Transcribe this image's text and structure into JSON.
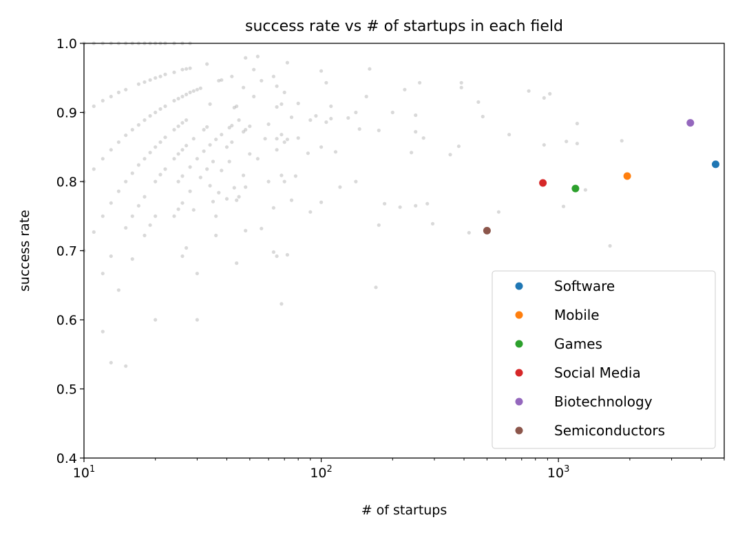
{
  "chart_data": {
    "type": "scatter",
    "title": "success rate vs # of startups in each field",
    "xlabel": "# of startups",
    "ylabel": "success rate",
    "xscale": "log",
    "xlim": [
      10,
      5000
    ],
    "ylim": [
      0.4,
      1.0
    ],
    "xticks": [
      {
        "value": 10,
        "base": "10",
        "exp": "1"
      },
      {
        "value": 100,
        "base": "10",
        "exp": "2"
      },
      {
        "value": 1000,
        "base": "10",
        "exp": "3"
      }
    ],
    "yticks": [
      {
        "value": 0.4,
        "label": "0.4"
      },
      {
        "value": 0.5,
        "label": "0.5"
      },
      {
        "value": 0.6,
        "label": "0.6"
      },
      {
        "value": 0.7,
        "label": "0.7"
      },
      {
        "value": 0.8,
        "label": "0.8"
      },
      {
        "value": 0.9,
        "label": "0.9"
      },
      {
        "value": 1.0,
        "label": "1.0"
      }
    ],
    "legend_position": "lower-right",
    "grid": false,
    "background_series": {
      "color": "#808080",
      "points": [
        [
          10,
          1.0
        ],
        [
          10,
          0.9
        ],
        [
          10,
          0.8
        ],
        [
          10,
          0.7
        ],
        [
          11,
          1.0
        ],
        [
          11,
          0.909
        ],
        [
          11,
          0.818
        ],
        [
          11,
          0.727
        ],
        [
          12,
          1.0
        ],
        [
          12,
          0.917
        ],
        [
          12,
          0.833
        ],
        [
          12,
          0.75
        ],
        [
          12,
          0.667
        ],
        [
          12,
          0.583
        ],
        [
          13,
          1.0
        ],
        [
          13,
          0.923
        ],
        [
          13,
          0.846
        ],
        [
          13,
          0.769
        ],
        [
          13,
          0.692
        ],
        [
          13,
          0.538
        ],
        [
          14,
          1.0
        ],
        [
          14,
          0.929
        ],
        [
          14,
          0.857
        ],
        [
          14,
          0.786
        ],
        [
          14,
          0.643
        ],
        [
          15,
          1.0
        ],
        [
          15,
          0.933
        ],
        [
          15,
          0.867
        ],
        [
          15,
          0.8
        ],
        [
          15,
          0.733
        ],
        [
          15,
          0.533
        ],
        [
          16,
          1.0
        ],
        [
          16,
          0.875
        ],
        [
          16,
          0.812
        ],
        [
          16,
          0.75
        ],
        [
          16,
          0.688
        ],
        [
          17,
          1.0
        ],
        [
          17,
          0.941
        ],
        [
          17,
          0.882
        ],
        [
          17,
          0.824
        ],
        [
          17,
          0.765
        ],
        [
          18,
          1.0
        ],
        [
          18,
          0.944
        ],
        [
          18,
          0.889
        ],
        [
          18,
          0.833
        ],
        [
          18,
          0.778
        ],
        [
          18,
          0.722
        ],
        [
          19,
          1.0
        ],
        [
          19,
          0.947
        ],
        [
          19,
          0.895
        ],
        [
          19,
          0.842
        ],
        [
          19,
          0.737
        ],
        [
          20,
          1.0
        ],
        [
          20,
          0.95
        ],
        [
          20,
          0.9
        ],
        [
          20,
          0.85
        ],
        [
          20,
          0.8
        ],
        [
          20,
          0.75
        ],
        [
          20,
          0.6
        ],
        [
          21,
          1.0
        ],
        [
          21,
          0.952
        ],
        [
          21,
          0.905
        ],
        [
          21,
          0.857
        ],
        [
          21,
          0.81
        ],
        [
          22,
          1.0
        ],
        [
          22,
          0.955
        ],
        [
          22,
          0.909
        ],
        [
          22,
          0.864
        ],
        [
          22,
          0.818
        ],
        [
          24,
          1.0
        ],
        [
          24,
          0.958
        ],
        [
          24,
          0.917
        ],
        [
          24,
          0.875
        ],
        [
          24,
          0.833
        ],
        [
          24,
          0.75
        ],
        [
          25,
          0.92
        ],
        [
          25,
          0.88
        ],
        [
          25,
          0.84
        ],
        [
          25,
          0.8
        ],
        [
          25,
          0.76
        ],
        [
          26,
          1.0
        ],
        [
          26,
          0.962
        ],
        [
          26,
          0.923
        ],
        [
          26,
          0.885
        ],
        [
          26,
          0.846
        ],
        [
          26,
          0.808
        ],
        [
          26,
          0.769
        ],
        [
          26,
          0.692
        ],
        [
          27,
          0.963
        ],
        [
          27,
          0.926
        ],
        [
          27,
          0.889
        ],
        [
          27,
          0.852
        ],
        [
          27,
          0.704
        ],
        [
          28,
          1.0
        ],
        [
          28,
          0.964
        ],
        [
          28,
          0.929
        ],
        [
          28,
          0.821
        ],
        [
          28,
          0.786
        ],
        [
          29,
          0.931
        ],
        [
          29,
          0.862
        ],
        [
          29,
          0.759
        ],
        [
          30,
          0.933
        ],
        [
          30,
          0.833
        ],
        [
          30,
          0.667
        ],
        [
          30,
          0.6
        ],
        [
          31,
          0.935
        ],
        [
          31,
          0.806
        ],
        [
          32,
          0.875
        ],
        [
          32,
          0.844
        ],
        [
          33,
          0.97
        ],
        [
          33,
          0.879
        ],
        [
          33,
          0.818
        ],
        [
          34,
          0.912
        ],
        [
          34,
          0.853
        ],
        [
          34,
          0.794
        ],
        [
          35,
          0.771
        ],
        [
          35,
          0.829
        ],
        [
          36,
          0.861
        ],
        [
          36,
          0.75
        ],
        [
          36,
          0.722
        ],
        [
          37,
          0.946
        ],
        [
          37,
          0.784
        ],
        [
          38,
          0.947
        ],
        [
          38,
          0.868
        ],
        [
          38,
          0.816
        ],
        [
          40,
          0.85
        ],
        [
          40,
          0.775
        ],
        [
          41,
          0.878
        ],
        [
          41,
          0.829
        ],
        [
          42,
          0.952
        ],
        [
          42,
          0.881
        ],
        [
          42,
          0.857
        ],
        [
          43,
          0.907
        ],
        [
          43,
          0.791
        ],
        [
          44,
          0.909
        ],
        [
          44,
          0.773
        ],
        [
          44,
          0.682
        ],
        [
          45,
          0.889
        ],
        [
          45,
          0.778
        ],
        [
          47,
          0.936
        ],
        [
          47,
          0.872
        ],
        [
          47,
          0.809
        ],
        [
          48,
          0.979
        ],
        [
          48,
          0.875
        ],
        [
          48,
          0.792
        ],
        [
          48,
          0.729
        ],
        [
          50,
          0.88
        ],
        [
          50,
          0.84
        ],
        [
          52,
          0.962
        ],
        [
          52,
          0.923
        ],
        [
          54,
          0.981
        ],
        [
          54,
          0.833
        ],
        [
          56,
          0.946
        ],
        [
          56,
          0.732
        ],
        [
          58,
          0.862
        ],
        [
          60,
          0.883
        ],
        [
          60,
          0.8
        ],
        [
          63,
          0.952
        ],
        [
          63,
          0.762
        ],
        [
          63,
          0.698
        ],
        [
          65,
          0.938
        ],
        [
          65,
          0.862
        ],
        [
          65,
          0.908
        ],
        [
          65,
          0.846
        ],
        [
          65,
          0.692
        ],
        [
          68,
          0.912
        ],
        [
          68,
          0.868
        ],
        [
          68,
          0.809
        ],
        [
          68,
          0.623
        ],
        [
          70,
          0.929
        ],
        [
          70,
          0.857
        ],
        [
          70,
          0.8
        ],
        [
          72,
          0.972
        ],
        [
          72,
          0.861
        ],
        [
          72,
          0.694
        ],
        [
          75,
          0.893
        ],
        [
          75,
          0.773
        ],
        [
          78,
          0.808
        ],
        [
          80,
          0.913
        ],
        [
          80,
          0.863
        ],
        [
          88,
          0.841
        ],
        [
          90,
          0.889
        ],
        [
          90,
          0.756
        ],
        [
          95,
          0.895
        ],
        [
          100,
          0.96
        ],
        [
          100,
          0.85
        ],
        [
          100,
          0.77
        ],
        [
          105,
          0.943
        ],
        [
          105,
          0.886
        ],
        [
          110,
          0.909
        ],
        [
          110,
          0.891
        ],
        [
          115,
          0.843
        ],
        [
          120,
          0.792
        ],
        [
          130,
          0.892
        ],
        [
          140,
          0.9
        ],
        [
          140,
          0.8
        ],
        [
          145,
          0.876
        ],
        [
          155,
          0.923
        ],
        [
          160,
          0.963
        ],
        [
          170,
          0.647
        ],
        [
          175,
          0.874
        ],
        [
          175,
          0.737
        ],
        [
          185,
          0.768
        ],
        [
          200,
          0.9
        ],
        [
          215,
          0.763
        ],
        [
          225,
          0.933
        ],
        [
          240,
          0.842
        ],
        [
          250,
          0.896
        ],
        [
          250,
          0.872
        ],
        [
          250,
          0.765
        ],
        [
          260,
          0.943
        ],
        [
          270,
          0.863
        ],
        [
          280,
          0.768
        ],
        [
          295,
          0.739
        ],
        [
          350,
          0.839
        ],
        [
          380,
          0.851
        ],
        [
          390,
          0.943
        ],
        [
          390,
          0.936
        ],
        [
          420,
          0.726
        ],
        [
          460,
          0.915
        ],
        [
          480,
          0.894
        ],
        [
          560,
          0.756
        ],
        [
          620,
          0.868
        ],
        [
          750,
          0.931
        ],
        [
          870,
          0.853
        ],
        [
          870,
          0.921
        ],
        [
          920,
          0.927
        ],
        [
          1050,
          0.764
        ],
        [
          1080,
          0.858
        ],
        [
          1200,
          0.855
        ],
        [
          1200,
          0.884
        ],
        [
          1300,
          0.788
        ],
        [
          1650,
          0.707
        ],
        [
          1850,
          0.859
        ]
      ]
    },
    "series": [
      {
        "name": "Software",
        "color": "#1f77b4",
        "x": 4600,
        "y": 0.825
      },
      {
        "name": "Mobile",
        "color": "#ff7f0e",
        "x": 1950,
        "y": 0.808
      },
      {
        "name": "Games",
        "color": "#2ca02c",
        "x": 1180,
        "y": 0.79
      },
      {
        "name": "Social Media",
        "color": "#d62728",
        "x": 860,
        "y": 0.798
      },
      {
        "name": "Biotechnology",
        "color": "#9467bd",
        "x": 3600,
        "y": 0.885
      },
      {
        "name": "Semiconductors",
        "color": "#8c564b",
        "x": 500,
        "y": 0.729
      }
    ]
  }
}
